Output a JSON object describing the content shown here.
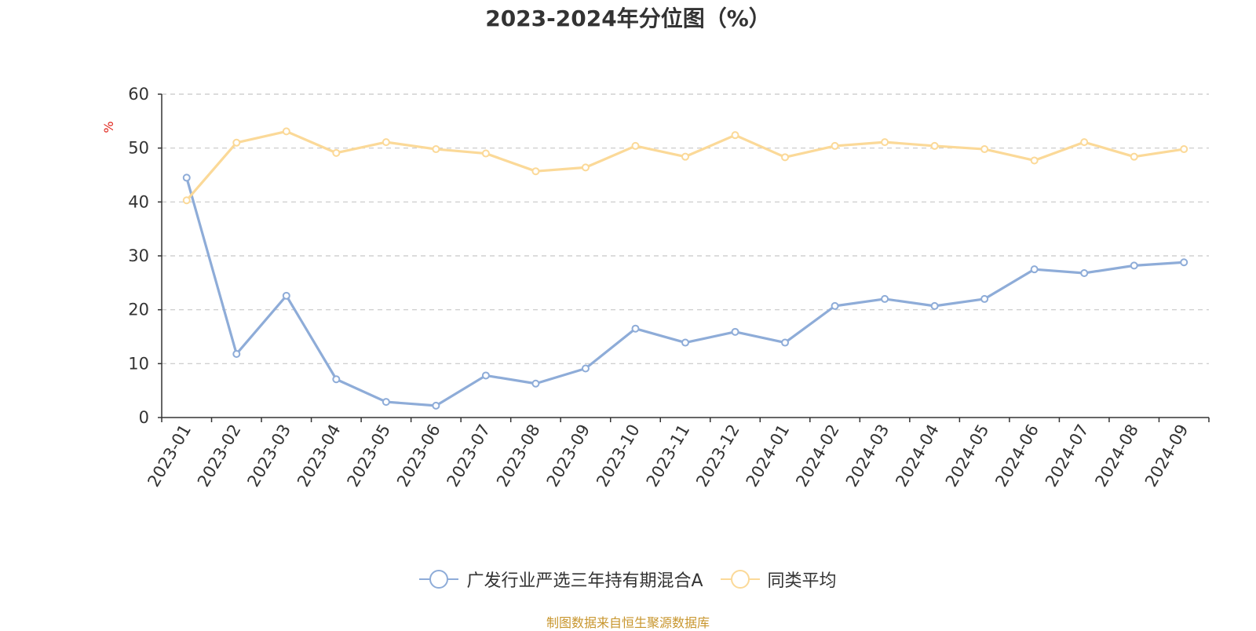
{
  "chart_data": {
    "type": "line",
    "title": "2023-2024年分位图（%）",
    "ylabel": "%",
    "ylim": [
      0,
      60
    ],
    "yticks": [
      0,
      10,
      20,
      30,
      40,
      50,
      60
    ],
    "grid": true,
    "legend_position": "bottom",
    "x": [
      "2023-01",
      "2023-02",
      "2023-03",
      "2023-04",
      "2023-05",
      "2023-06",
      "2023-07",
      "2023-08",
      "2023-09",
      "2023-10",
      "2023-11",
      "2023-12",
      "2024-01",
      "2024-02",
      "2024-03",
      "2024-04",
      "2024-05",
      "2024-06",
      "2024-07",
      "2024-08",
      "2024-09"
    ],
    "series": [
      {
        "name": "广发行业严选三年持有期混合A",
        "color": "#8eacd8",
        "values": [
          44.5,
          11.8,
          22.6,
          7.1,
          2.9,
          2.2,
          7.8,
          6.3,
          9.1,
          16.5,
          13.9,
          15.9,
          13.9,
          20.7,
          22.0,
          20.7,
          22.0,
          27.5,
          26.8,
          28.2,
          28.8
        ]
      },
      {
        "name": "同类平均",
        "color": "#fbd998",
        "values": [
          40.3,
          51.0,
          53.1,
          49.1,
          51.1,
          49.8,
          49.0,
          45.7,
          46.4,
          50.4,
          48.4,
          52.4,
          48.3,
          50.4,
          51.1,
          50.4,
          49.8,
          47.7,
          51.1,
          48.4,
          49.8
        ]
      }
    ],
    "source": "制图数据来自恒生聚源数据库"
  }
}
